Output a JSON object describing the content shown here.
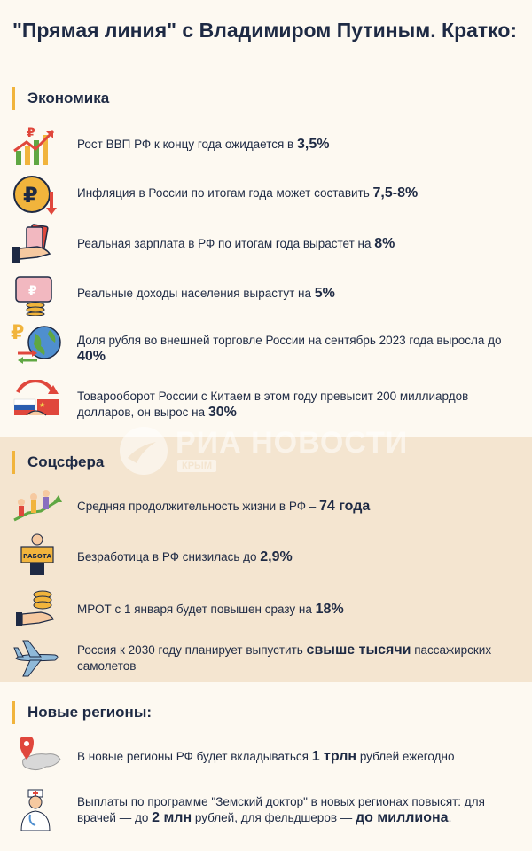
{
  "title": "\"Прямая линия\" с Владимиром Путиным. Кратко:",
  "watermark": {
    "name": "РИА НОВОСТИ",
    "sub": "КРЫМ"
  },
  "economy": {
    "heading": "Экономика",
    "items": [
      {
        "icon": "gdp-growth-icon",
        "pre": "Рост ВВП РФ к концу года ожидается в ",
        "hl": "3,5%",
        "post": ""
      },
      {
        "icon": "ruble-coin-icon",
        "pre": "Инфляция в России по итогам года может составить ",
        "hl": "7,5-8%",
        "post": ""
      },
      {
        "icon": "salary-hand-icon",
        "pre": "Реальная зарплата в РФ по итогам года вырастет на ",
        "hl": "8%",
        "post": ""
      },
      {
        "icon": "income-wallet-icon",
        "pre": "Реальные доходы населения вырастут на ",
        "hl": "5%",
        "post": ""
      },
      {
        "icon": "ruble-globe-icon",
        "pre": "Доля рубля во внешней торговле России на сентябрь 2023 года выросла до ",
        "hl": "40%",
        "post": ""
      },
      {
        "icon": "russia-china-trade-icon",
        "pre": "Товарооборот России с Китаем в этом году превысит 200 миллиардов долларов, он вырос на ",
        "hl": "30%",
        "post": ""
      }
    ]
  },
  "social": {
    "heading": "Соцсфера",
    "items": [
      {
        "icon": "life-expectancy-icon",
        "pre": "Средняя продолжительность жизни в РФ – ",
        "hl": "74 года",
        "post": ""
      },
      {
        "icon": "job-sign-icon",
        "pre": "Безработица в РФ снизилась до ",
        "hl": "2,9%",
        "post": ""
      },
      {
        "icon": "coins-hand-icon",
        "pre": "МРОТ с 1 января будет повышен сразу на ",
        "hl": "18%",
        "post": ""
      },
      {
        "icon": "airplane-icon",
        "pre": "Россия к 2030 году планирует выпустить ",
        "hl": "свыше тысячи",
        "post": " пассажирских самолетов"
      }
    ],
    "job_sign_text": "РАБОТА"
  },
  "regions": {
    "heading": "Новые регионы:",
    "items": [
      {
        "icon": "map-pin-icon",
        "pre": "В новые регионы РФ будет вкладываться ",
        "hl": "1 трлн",
        "post": " рублей ежегодно"
      },
      {
        "icon": "doctor-icon",
        "pre": "Выплаты по программе \"Земский доктор\" в новых регионах повысят: для врачей — до ",
        "hl": "2 млн",
        "mid": " рублей, для фельдшеров — ",
        "hl2": "до миллиона",
        "post": "."
      }
    ]
  },
  "colors": {
    "accent": "#f1b43c",
    "text": "#1e2a44",
    "band": "#f4e5d0",
    "red": "#e0473c",
    "green": "#5fa743"
  }
}
